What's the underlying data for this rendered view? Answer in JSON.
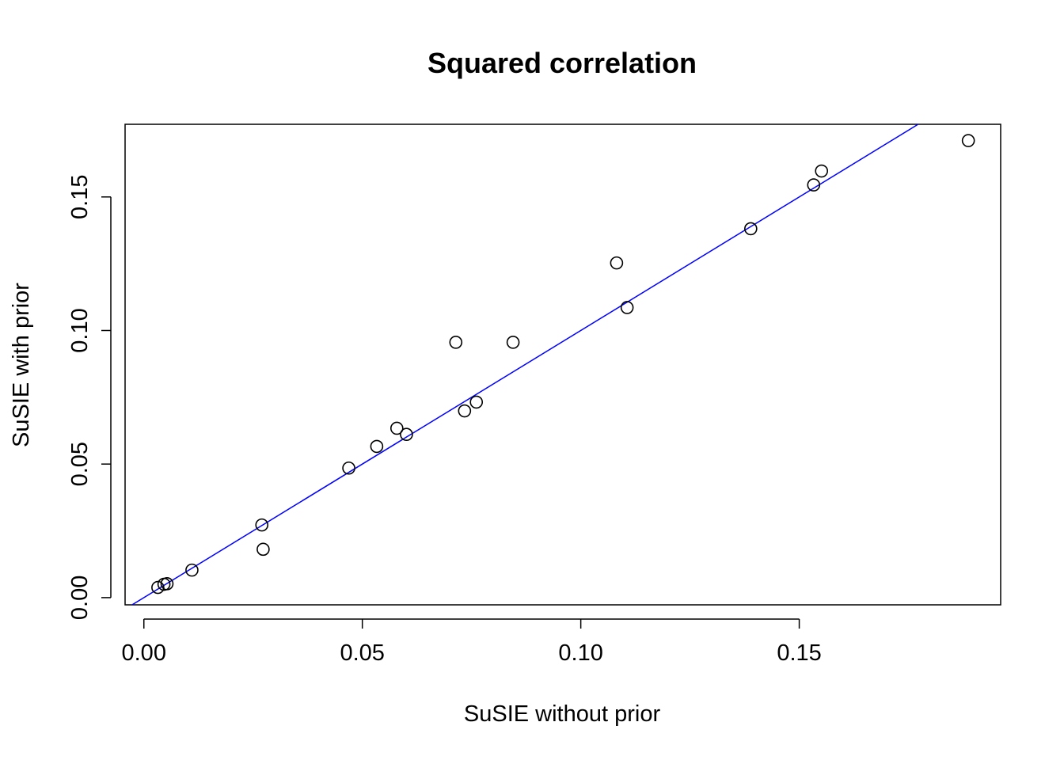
{
  "chart_data": {
    "type": "scatter",
    "title": "Squared correlation",
    "xlabel": "SuSIE without prior",
    "ylabel": "SuSIE with prior",
    "xlim": [
      -0.0043,
      0.1961
    ],
    "ylim": [
      -0.0027,
      0.1772
    ],
    "xticks": [
      0.0,
      0.05,
      0.1,
      0.15
    ],
    "xtick_labels": [
      "0.00",
      "0.05",
      "0.10",
      "0.15"
    ],
    "yticks": [
      0.0,
      0.05,
      0.1,
      0.15
    ],
    "ytick_labels": [
      "0.00",
      "0.05",
      "0.10",
      "0.15"
    ],
    "grid": false,
    "reference_line": {
      "intercept": 0,
      "slope": 1,
      "color": "#0000ff"
    },
    "points": [
      {
        "x": 0.0032,
        "y": 0.0038
      },
      {
        "x": 0.0046,
        "y": 0.005
      },
      {
        "x": 0.0053,
        "y": 0.0052
      },
      {
        "x": 0.011,
        "y": 0.0103
      },
      {
        "x": 0.027,
        "y": 0.0272
      },
      {
        "x": 0.0273,
        "y": 0.0181
      },
      {
        "x": 0.0469,
        "y": 0.0485
      },
      {
        "x": 0.0533,
        "y": 0.0566
      },
      {
        "x": 0.0579,
        "y": 0.0634
      },
      {
        "x": 0.0601,
        "y": 0.0611
      },
      {
        "x": 0.0714,
        "y": 0.0956
      },
      {
        "x": 0.0734,
        "y": 0.0699
      },
      {
        "x": 0.0761,
        "y": 0.0732
      },
      {
        "x": 0.0845,
        "y": 0.0956
      },
      {
        "x": 0.1082,
        "y": 0.1253
      },
      {
        "x": 0.1106,
        "y": 0.1086
      },
      {
        "x": 0.1389,
        "y": 0.1381
      },
      {
        "x": 0.1533,
        "y": 0.1545
      },
      {
        "x": 0.1551,
        "y": 0.1597
      },
      {
        "x": 0.1887,
        "y": 0.1711
      }
    ],
    "point_color": "#000000",
    "line_color": "#0000ff"
  }
}
